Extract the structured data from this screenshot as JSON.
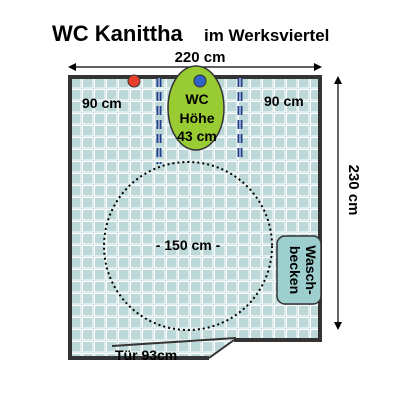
{
  "title": {
    "main": "WC Kanittha",
    "sub": "im Werksviertel"
  },
  "dimensions": {
    "width": "220 cm",
    "height": "230 cm",
    "left_clearance": "90 cm",
    "right_clearance": "90 cm",
    "turning_circle": "- 150 cm -",
    "door": "Tür 93cm"
  },
  "toilet": {
    "line1": "WC",
    "line2": "Höhe",
    "line3": "43 cm"
  },
  "sink": {
    "line1": "Wasch-",
    "line2": "becken"
  },
  "colors": {
    "tiles": "#bcd8d8",
    "grout": "#ffffff",
    "toilet": "#99cc33",
    "sink": "#9ecfcf",
    "grab_bar": "#1f3f8c",
    "red_button": "#e8402a",
    "blue_button": "#2e63c8"
  }
}
